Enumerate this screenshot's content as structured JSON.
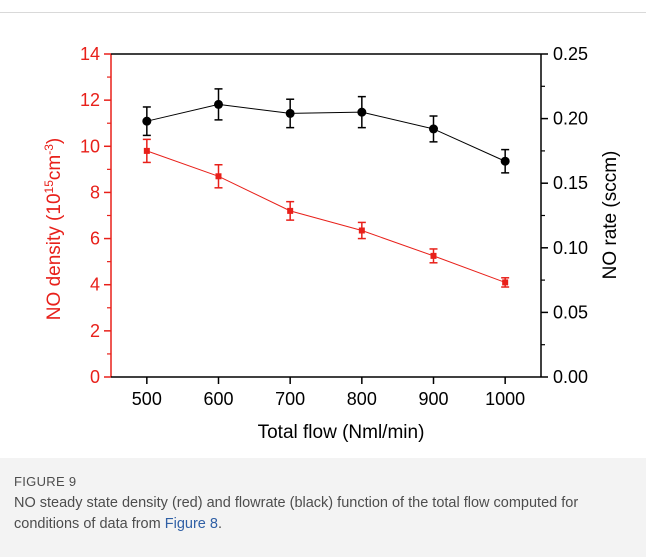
{
  "chart_data": {
    "type": "line",
    "xlabel": "Total flow (Nml/min)",
    "ylabel_left": "NO density (10^15 cm^-3)",
    "ylabel_right": "NO rate (sccm)",
    "xlim": [
      450,
      1050
    ],
    "ylim_left": [
      0,
      14
    ],
    "ylim_right": [
      0,
      0.25
    ],
    "x_ticks": [
      "500",
      "600",
      "700",
      "800",
      "900",
      "1000"
    ],
    "y_left_ticks": [
      "0",
      "2",
      "4",
      "6",
      "8",
      "10",
      "12",
      "14"
    ],
    "y_right_ticks": [
      "0.00",
      "0.05",
      "0.10",
      "0.15",
      "0.20",
      "0.25"
    ],
    "x": [
      500,
      600,
      700,
      800,
      900,
      1000
    ],
    "series": [
      {
        "axis": "left",
        "color": "#e8201a",
        "marker": "square",
        "values": [
          9.8,
          8.7,
          7.2,
          6.35,
          5.25,
          4.1
        ],
        "errors": [
          0.5,
          0.5,
          0.4,
          0.35,
          0.3,
          0.2
        ]
      },
      {
        "axis": "right",
        "color": "#000000",
        "marker": "circle",
        "values": [
          0.198,
          0.211,
          0.204,
          0.205,
          0.192,
          0.167
        ],
        "errors": [
          0.011,
          0.012,
          0.011,
          0.012,
          0.01,
          0.009
        ]
      }
    ],
    "grid": false,
    "legend": "none"
  },
  "colors": {
    "left_axis": "#e8201a",
    "right_axis": "#000000",
    "caption_link": "#2f5fa5"
  },
  "caption": {
    "label": "FIGURE 9",
    "text_before": "NO steady state density (red) and flowrate (black) function of the total flow computed for conditions of data from ",
    "link": "Figure 8",
    "text_after": "."
  }
}
